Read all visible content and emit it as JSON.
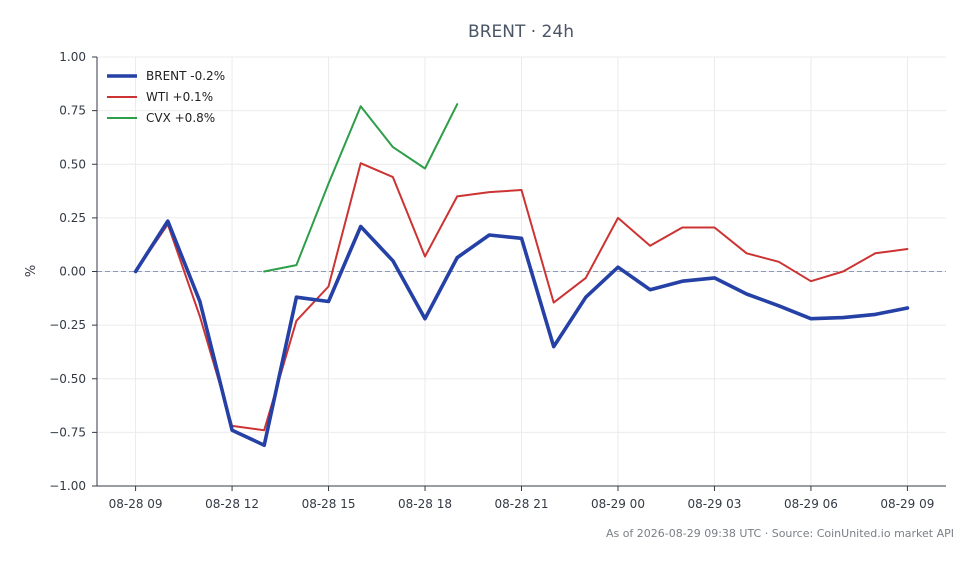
{
  "chart_data": {
    "type": "line",
    "title": "BRENT · 24h",
    "xlabel": "",
    "ylabel": "%",
    "ylim": [
      -1.0,
      1.0
    ],
    "y_ticks": [
      1.0,
      0.75,
      0.5,
      0.25,
      0.0,
      -0.25,
      -0.5,
      -0.75,
      -1.0
    ],
    "y_tick_labels": [
      "1.00",
      "0.75",
      "0.50",
      "0.25",
      "0.00",
      "−0.25",
      "−0.50",
      "−0.75",
      "−1.00"
    ],
    "x_tick_labels": [
      "08-28 09",
      "08-28 12",
      "08-28 15",
      "08-28 18",
      "08-28 21",
      "08-29 00",
      "08-29 03",
      "08-29 06",
      "08-29 09"
    ],
    "x_ticks_hours": [
      0,
      3,
      6,
      9,
      12,
      15,
      18,
      21,
      24
    ],
    "xlim_hours": [
      -1.2,
      25.2
    ],
    "grid": true,
    "zero_line": true,
    "legend_position": "top-left",
    "series": [
      {
        "name": "BRENT -0.2%",
        "color": "#2541a6",
        "x": [
          0,
          1,
          2,
          3,
          4,
          5,
          6,
          7,
          8,
          9,
          10,
          11,
          12,
          13,
          14,
          15,
          16,
          17,
          18,
          19,
          20,
          21,
          22,
          23,
          24
        ],
        "values": [
          0.0,
          0.235,
          -0.14,
          -0.74,
          -0.81,
          -0.12,
          -0.14,
          0.21,
          0.05,
          -0.22,
          0.065,
          0.17,
          0.155,
          -0.35,
          -0.12,
          0.02,
          -0.085,
          -0.045,
          -0.03,
          -0.105,
          -0.16,
          -0.22,
          -0.215,
          -0.2,
          -0.17
        ]
      },
      {
        "name": "WTI +0.1%",
        "color": "#cc3333",
        "x": [
          0,
          1,
          2,
          3,
          4,
          5,
          6,
          7,
          8,
          9,
          10,
          11,
          12,
          13,
          14,
          15,
          16,
          17,
          18,
          19,
          20,
          21,
          22,
          23,
          24
        ],
        "values": [
          0.0,
          0.22,
          -0.21,
          -0.72,
          -0.74,
          -0.23,
          -0.07,
          0.505,
          0.44,
          0.07,
          0.35,
          0.37,
          0.38,
          -0.145,
          -0.03,
          0.25,
          0.12,
          0.205,
          0.205,
          0.085,
          0.045,
          -0.045,
          0.0,
          0.085,
          0.105
        ]
      },
      {
        "name": "CVX +0.8%",
        "color": "#2e9e4a",
        "x": [
          4,
          5,
          6,
          7,
          8,
          9,
          10
        ],
        "values": [
          0.0,
          0.03,
          0.41,
          0.77,
          0.58,
          0.48,
          0.78
        ]
      }
    ],
    "footer": "As of 2026-08-29 09:38 UTC · Source: CoinUnited.io market API"
  }
}
